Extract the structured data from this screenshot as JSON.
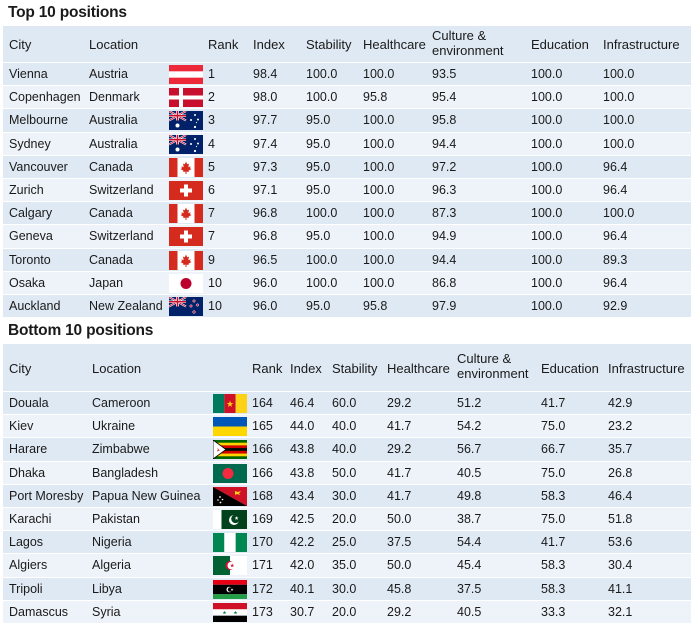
{
  "top": {
    "title": "Top 10 positions",
    "headers": {
      "city": "City",
      "location": "Location",
      "rank": "Rank",
      "index": "Index",
      "stability": "Stability",
      "healthcare": "Healthcare",
      "culture_1": "Culture &",
      "culture_2": "environment",
      "education": "Education",
      "infrastructure": "Infrastructure"
    },
    "rows": [
      {
        "city": "Vienna",
        "location": "Austria",
        "flag": "austria",
        "rank": "1",
        "index": "98.4",
        "stability": "100.0",
        "healthcare": "100.0",
        "culture": "93.5",
        "education": "100.0",
        "infrastructure": "100.0"
      },
      {
        "city": "Copenhagen",
        "location": "Denmark",
        "flag": "denmark",
        "rank": "2",
        "index": "98.0",
        "stability": "100.0",
        "healthcare": "95.8",
        "culture": "95.4",
        "education": "100.0",
        "infrastructure": "100.0"
      },
      {
        "city": "Melbourne",
        "location": "Australia",
        "flag": "australia",
        "rank": "3",
        "index": "97.7",
        "stability": "95.0",
        "healthcare": "100.0",
        "culture": "95.8",
        "education": "100.0",
        "infrastructure": "100.0"
      },
      {
        "city": "Sydney",
        "location": "Australia",
        "flag": "australia",
        "rank": "4",
        "index": "97.4",
        "stability": "95.0",
        "healthcare": "100.0",
        "culture": "94.4",
        "education": "100.0",
        "infrastructure": "100.0"
      },
      {
        "city": "Vancouver",
        "location": "Canada",
        "flag": "canada",
        "rank": "5",
        "index": "97.3",
        "stability": "95.0",
        "healthcare": "100.0",
        "culture": "97.2",
        "education": "100.0",
        "infrastructure": "96.4"
      },
      {
        "city": "Zurich",
        "location": "Switzerland",
        "flag": "switzerland",
        "rank": "6",
        "index": "97.1",
        "stability": "95.0",
        "healthcare": "100.0",
        "culture": "96.3",
        "education": "100.0",
        "infrastructure": "96.4"
      },
      {
        "city": "Calgary",
        "location": "Canada",
        "flag": "canada",
        "rank": "7",
        "index": "96.8",
        "stability": "100.0",
        "healthcare": "100.0",
        "culture": "87.3",
        "education": "100.0",
        "infrastructure": "100.0"
      },
      {
        "city": "Geneva",
        "location": "Switzerland",
        "flag": "switzerland",
        "rank": "7",
        "index": "96.8",
        "stability": "95.0",
        "healthcare": "100.0",
        "culture": "94.9",
        "education": "100.0",
        "infrastructure": "96.4"
      },
      {
        "city": "Toronto",
        "location": "Canada",
        "flag": "canada",
        "rank": "9",
        "index": "96.5",
        "stability": "100.0",
        "healthcare": "100.0",
        "culture": "94.4",
        "education": "100.0",
        "infrastructure": "89.3"
      },
      {
        "city": "Osaka",
        "location": "Japan",
        "flag": "japan",
        "rank": "10",
        "index": "96.0",
        "stability": "100.0",
        "healthcare": "100.0",
        "culture": "86.8",
        "education": "100.0",
        "infrastructure": "96.4"
      },
      {
        "city": "Auckland",
        "location": "New Zealand",
        "flag": "newzealand",
        "rank": "10",
        "index": "96.0",
        "stability": "95.0",
        "healthcare": "95.8",
        "culture": "97.9",
        "education": "100.0",
        "infrastructure": "92.9"
      }
    ]
  },
  "bottom": {
    "title": "Bottom 10 positions",
    "headers": {
      "city": "City",
      "location": "Location",
      "rank": "Rank",
      "index": "Index",
      "stability": "Stability",
      "healthcare": "Healthcare",
      "culture_1": "Culture &",
      "culture_2": "environment",
      "education": "Education",
      "infrastructure": "Infrastructure"
    },
    "rows": [
      {
        "city": "Douala",
        "location": "Cameroon",
        "flag": "cameroon",
        "rank": "164",
        "index": "46.4",
        "stability": "60.0",
        "healthcare": "29.2",
        "culture": "51.2",
        "education": "41.7",
        "infrastructure": "42.9"
      },
      {
        "city": "Kiev",
        "location": "Ukraine",
        "flag": "ukraine",
        "rank": "165",
        "index": "44.0",
        "stability": "40.0",
        "healthcare": "41.7",
        "culture": "54.2",
        "education": "75.0",
        "infrastructure": "23.2"
      },
      {
        "city": "Harare",
        "location": "Zimbabwe",
        "flag": "zimbabwe",
        "rank": "166",
        "index": "43.8",
        "stability": "40.0",
        "healthcare": "29.2",
        "culture": "56.7",
        "education": "66.7",
        "infrastructure": "35.7"
      },
      {
        "city": "Dhaka",
        "location": "Bangladesh",
        "flag": "bangladesh",
        "rank": "166",
        "index": "43.8",
        "stability": "50.0",
        "healthcare": "41.7",
        "culture": "40.5",
        "education": "75.0",
        "infrastructure": "26.8"
      },
      {
        "city": "Port Moresby",
        "location": "Papua New Guinea",
        "flag": "png",
        "rank": "168",
        "index": "43.4",
        "stability": "30.0",
        "healthcare": "41.7",
        "culture": "49.8",
        "education": "58.3",
        "infrastructure": "46.4"
      },
      {
        "city": "Karachi",
        "location": "Pakistan",
        "flag": "pakistan",
        "rank": "169",
        "index": "42.5",
        "stability": "20.0",
        "healthcare": "50.0",
        "culture": "38.7",
        "education": "75.0",
        "infrastructure": "51.8"
      },
      {
        "city": "Lagos",
        "location": "Nigeria",
        "flag": "nigeria",
        "rank": "170",
        "index": "42.2",
        "stability": "25.0",
        "healthcare": "37.5",
        "culture": "54.4",
        "education": "41.7",
        "infrastructure": "53.6"
      },
      {
        "city": "Algiers",
        "location": "Algeria",
        "flag": "algeria",
        "rank": "171",
        "index": "42.0",
        "stability": "35.0",
        "healthcare": "50.0",
        "culture": "45.4",
        "education": "58.3",
        "infrastructure": "30.4"
      },
      {
        "city": "Tripoli",
        "location": "Libya",
        "flag": "libya",
        "rank": "172",
        "index": "40.1",
        "stability": "30.0",
        "healthcare": "45.8",
        "culture": "37.5",
        "education": "58.3",
        "infrastructure": "41.1"
      },
      {
        "city": "Damascus",
        "location": "Syria",
        "flag": "syria",
        "rank": "173",
        "index": "30.7",
        "stability": "20.0",
        "healthcare": "29.2",
        "culture": "40.5",
        "education": "33.3",
        "infrastructure": "32.1"
      }
    ]
  }
}
